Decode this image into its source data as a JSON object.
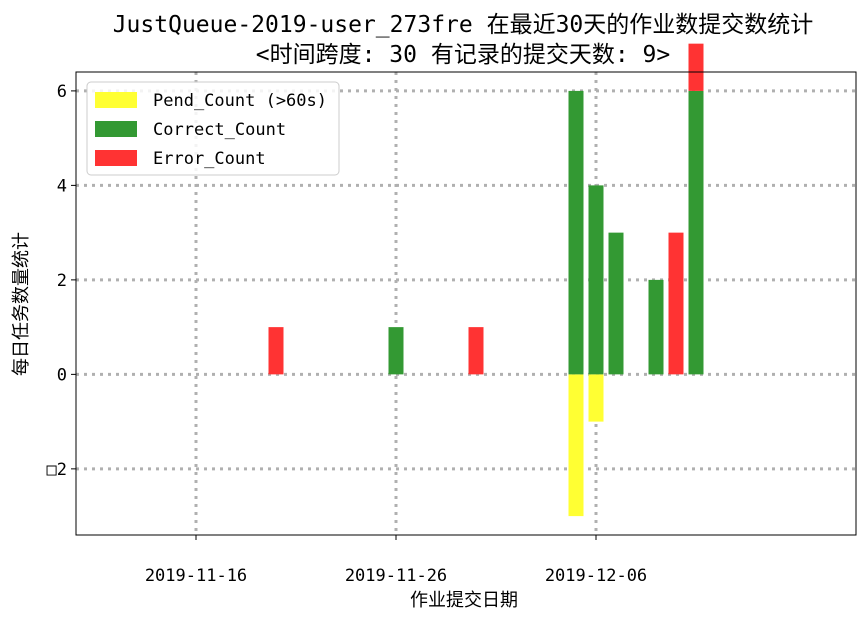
{
  "chart_data": {
    "type": "bar",
    "stacked": true,
    "title": "JustQueue-2019-user_273fre 在最近30天的作业数提交数统计",
    "subtitle": "<时间跨度: 30  有记录的提交天数: 9>",
    "xlabel": "作业提交日期",
    "ylabel": "每日任务数量统计",
    "x_range": [
      "2019-11-10",
      "2019-12-19"
    ],
    "ylim": [
      -3.4,
      6.4
    ],
    "x_ticks": [
      "2019-11-16",
      "2019-11-26",
      "2019-12-06"
    ],
    "y_ticks": [
      -2,
      0,
      2,
      4,
      6
    ],
    "y_tick_labels": [
      "□2",
      "0",
      "2",
      "4",
      "6"
    ],
    "grid": true,
    "legend_position": "top-left",
    "series": [
      {
        "name": "Pend_Count (>60s)",
        "color": "#ffff33",
        "points": [
          {
            "date": "2019-12-05",
            "value": -3
          },
          {
            "date": "2019-12-06",
            "value": -1
          }
        ]
      },
      {
        "name": "Correct_Count",
        "color": "#339933",
        "points": [
          {
            "date": "2019-11-26",
            "value": 1
          },
          {
            "date": "2019-12-05",
            "value": 6
          },
          {
            "date": "2019-12-06",
            "value": 4
          },
          {
            "date": "2019-12-07",
            "value": 3
          },
          {
            "date": "2019-12-09",
            "value": 2
          },
          {
            "date": "2019-12-11",
            "value": 6
          }
        ]
      },
      {
        "name": "Error_Count",
        "color": "#ff3333",
        "points": [
          {
            "date": "2019-11-20",
            "value": 1
          },
          {
            "date": "2019-11-30",
            "value": 1
          },
          {
            "date": "2019-12-10",
            "value": 3
          },
          {
            "date": "2019-12-11",
            "value": 1
          }
        ]
      }
    ]
  }
}
